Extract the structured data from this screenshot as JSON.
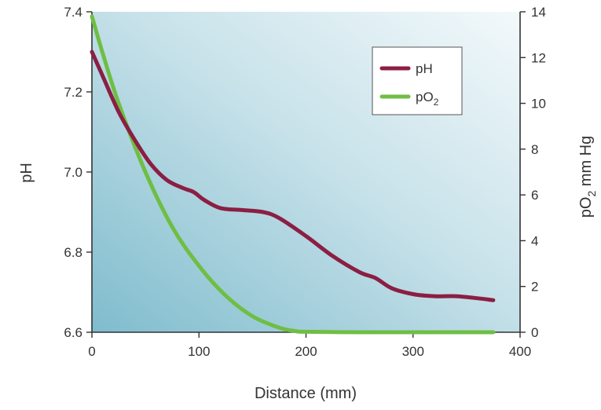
{
  "chart_data": {
    "type": "line",
    "title": "",
    "xlabel": "Distance (mm)",
    "ylabel_left": "pH",
    "ylabel_right_main": "pO",
    "ylabel_right_sub": "2",
    "ylabel_right_rest": " mm Hg",
    "xlim": [
      0,
      400
    ],
    "ylim_left": [
      6.6,
      7.4
    ],
    "ylim_right": [
      0,
      14
    ],
    "x_ticks": [
      "0",
      "100",
      "200",
      "300",
      "400"
    ],
    "y_left_ticks": [
      "6.6",
      "6.8",
      "7.0",
      "7.2",
      "7.4"
    ],
    "y_right_ticks": [
      "0",
      "2",
      "4",
      "6",
      "8",
      "10",
      "12",
      "14"
    ],
    "grid": false,
    "legend_position": "top-right",
    "series": [
      {
        "name": "pH",
        "legend_main": "pH",
        "legend_sub": "",
        "axis": "left",
        "color": "#8b1f43",
        "x": [
          0,
          10,
          25,
          40,
          55,
          70,
          85,
          95,
          105,
          120,
          140,
          160,
          175,
          200,
          225,
          250,
          265,
          280,
          300,
          320,
          340,
          360,
          375
        ],
        "y": [
          7.3,
          7.24,
          7.15,
          7.08,
          7.02,
          6.98,
          6.96,
          6.95,
          6.93,
          6.91,
          6.905,
          6.9,
          6.885,
          6.84,
          6.79,
          6.75,
          6.735,
          6.71,
          6.695,
          6.69,
          6.69,
          6.685,
          6.68
        ]
      },
      {
        "name": "pO2",
        "legend_main": "pO",
        "legend_sub": "2",
        "axis": "right",
        "color": "#6fbe44",
        "x": [
          0,
          10,
          25,
          50,
          75,
          100,
          125,
          150,
          175,
          190,
          200,
          250,
          300,
          350,
          375
        ],
        "y": [
          13.8,
          12.2,
          10.0,
          7.0,
          4.6,
          2.9,
          1.6,
          0.7,
          0.2,
          0.05,
          0.02,
          0,
          0,
          0,
          0
        ]
      }
    ]
  }
}
